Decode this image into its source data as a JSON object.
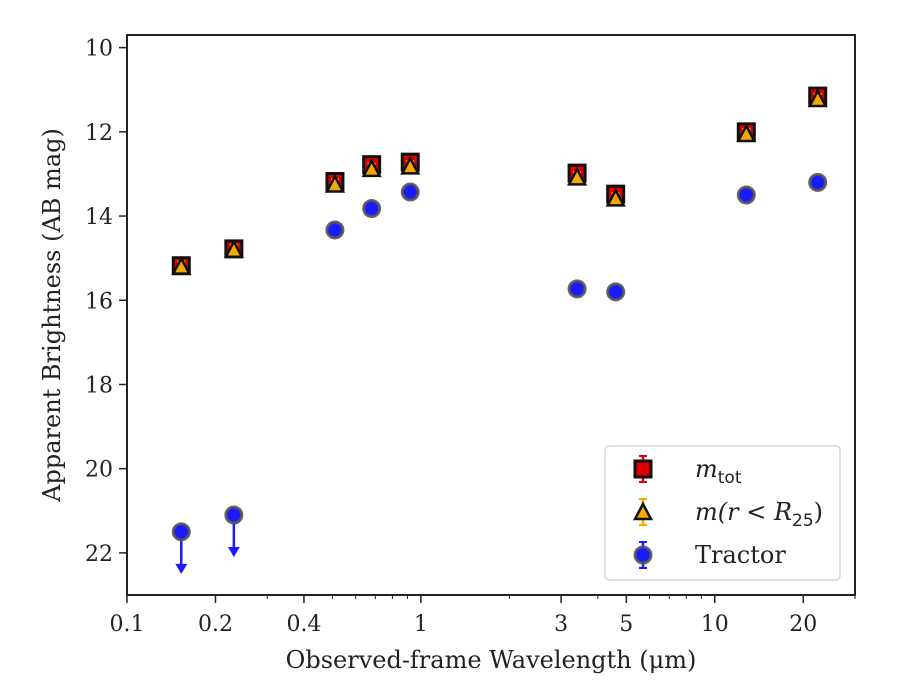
{
  "chart_data": {
    "type": "scatter",
    "xlabel": "Observed-frame Wavelength (μm)",
    "ylabel": "Apparent Brightness (AB mag)",
    "x_scale": "log",
    "y_inverted": true,
    "xlim": [
      0.1,
      30
    ],
    "ylim": [
      23,
      9.7
    ],
    "x_major_ticks": [
      0.1,
      0.2,
      0.4,
      1,
      3,
      5,
      10,
      20
    ],
    "x_major_tick_labels": [
      "0.1",
      "0.2",
      "0.4",
      "1",
      "3",
      "5",
      "10",
      "20"
    ],
    "y_ticks": [
      10,
      12,
      14,
      16,
      18,
      20,
      22
    ],
    "y_tick_labels": [
      "10",
      "12",
      "14",
      "16",
      "18",
      "20",
      "22"
    ],
    "legend_position": "lower-right",
    "series": [
      {
        "name": "m_tot",
        "legend_label": {
          "main": "m",
          "sub": "tot"
        },
        "marker": "square",
        "color": "#e00000",
        "x": [
          0.153,
          0.231,
          0.51,
          0.68,
          0.92,
          3.4,
          4.6,
          12.8,
          22.4
        ],
        "y": [
          15.18,
          14.78,
          13.18,
          12.78,
          12.72,
          12.98,
          13.48,
          12.0,
          11.15
        ],
        "err": [
          0.12,
          0.12,
          0.12,
          0.12,
          0.12,
          0.12,
          0.12,
          0.12,
          0.12
        ]
      },
      {
        "name": "m(r < R_25)",
        "legend_label": {
          "main": "m(r < R",
          "sub": "25",
          "tail": ")"
        },
        "marker": "triangle",
        "color": "#f5a800",
        "x": [
          0.153,
          0.231,
          0.51,
          0.68,
          0.92,
          3.4,
          4.6,
          12.8,
          22.4
        ],
        "y": [
          15.2,
          14.8,
          13.25,
          12.88,
          12.82,
          13.08,
          13.58,
          12.05,
          11.22
        ],
        "err": [
          0.12,
          0.12,
          0.12,
          0.12,
          0.12,
          0.12,
          0.12,
          0.12,
          0.12
        ]
      },
      {
        "name": "Tractor",
        "legend_label": {
          "main": "Tractor"
        },
        "marker": "circle",
        "color": "#1a1aff",
        "x": [
          0.153,
          0.231,
          0.51,
          0.68,
          0.92,
          3.4,
          4.6,
          12.8,
          22.4
        ],
        "y": [
          21.5,
          21.1,
          14.33,
          13.82,
          13.43,
          15.73,
          15.8,
          13.5,
          13.2
        ],
        "err": [
          0.05,
          0.05,
          0.05,
          0.05,
          0.05,
          0.05,
          0.05,
          0.05,
          0.05
        ],
        "upper_limit": [
          true,
          true,
          false,
          false,
          false,
          false,
          false,
          false,
          false
        ]
      }
    ]
  }
}
